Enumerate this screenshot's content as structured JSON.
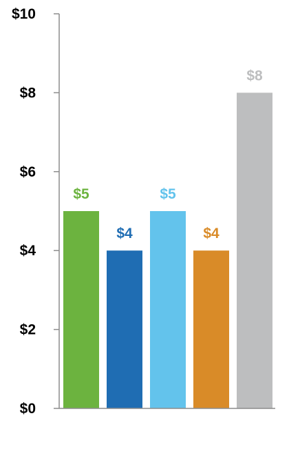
{
  "chart_data": {
    "type": "bar",
    "categories": [
      "",
      "",
      "",
      "",
      ""
    ],
    "values": [
      5,
      4,
      5,
      4,
      8
    ],
    "data_labels": [
      "$5",
      "$4",
      "$5",
      "$4",
      "$8"
    ],
    "bar_colors": [
      "#6cb33f",
      "#1f6db3",
      "#63c3ec",
      "#d98b28",
      "#bdbebf"
    ],
    "ylim": [
      0,
      10
    ],
    "y_ticks": [
      0,
      2,
      4,
      6,
      8,
      10
    ],
    "y_tick_labels": [
      "$0",
      "$2",
      "$4",
      "$6",
      "$8",
      "$10"
    ],
    "title": "",
    "xlabel": "",
    "ylabel": "",
    "grid": false,
    "legend": "none"
  }
}
